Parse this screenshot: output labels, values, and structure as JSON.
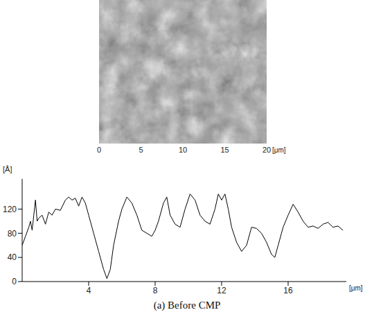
{
  "chart_data": [
    {
      "type": "image",
      "xlim": [
        0,
        20
      ],
      "xticks": [
        0,
        5,
        10,
        15,
        20
      ],
      "x_label": "[μm]"
    },
    {
      "type": "line",
      "title": "(a) Before CMP",
      "x_label": "[μm]",
      "y_label": "[Å]",
      "x": [
        0,
        0.2,
        0.4,
        0.5,
        0.6,
        0.7,
        0.8,
        0.9,
        1.0,
        1.2,
        1.4,
        1.6,
        1.8,
        2.0,
        2.3,
        2.6,
        2.8,
        3.0,
        3.2,
        3.4,
        3.6,
        3.8,
        4.0,
        4.3,
        4.6,
        4.9,
        5.1,
        5.3,
        5.5,
        5.8,
        6.0,
        6.3,
        6.6,
        6.9,
        7.2,
        7.5,
        7.8,
        8.0,
        8.2,
        8.5,
        8.7,
        8.9,
        9.2,
        9.5,
        9.8,
        10.1,
        10.4,
        10.7,
        11.0,
        11.3,
        11.6,
        11.8,
        12.0,
        12.2,
        12.4,
        12.6,
        12.9,
        13.2,
        13.5,
        13.8,
        14.1,
        14.4,
        14.7,
        15.0,
        15.2,
        15.4,
        15.7,
        16.0,
        16.3,
        16.6,
        16.9,
        17.2,
        17.5,
        17.8,
        18.1,
        18.4,
        18.7,
        19.0,
        19.3
      ],
      "values": [
        60,
        75,
        90,
        100,
        85,
        110,
        135,
        100,
        105,
        110,
        95,
        115,
        110,
        120,
        118,
        135,
        140,
        135,
        138,
        125,
        140,
        130,
        110,
        80,
        50,
        20,
        5,
        20,
        60,
        100,
        120,
        140,
        130,
        110,
        85,
        80,
        75,
        85,
        100,
        130,
        140,
        110,
        95,
        90,
        120,
        145,
        135,
        110,
        100,
        95,
        120,
        145,
        135,
        145,
        120,
        90,
        65,
        50,
        60,
        90,
        88,
        80,
        65,
        45,
        40,
        60,
        90,
        110,
        128,
        115,
        100,
        90,
        92,
        88,
        95,
        98,
        90,
        92,
        85
      ],
      "color": "#000000",
      "xlim": [
        0,
        19.5
      ],
      "xticks": [
        4,
        8,
        12,
        16
      ],
      "ylim": [
        0,
        170
      ],
      "yticks": [
        0,
        40,
        80,
        120
      ],
      "grid": false
    }
  ]
}
